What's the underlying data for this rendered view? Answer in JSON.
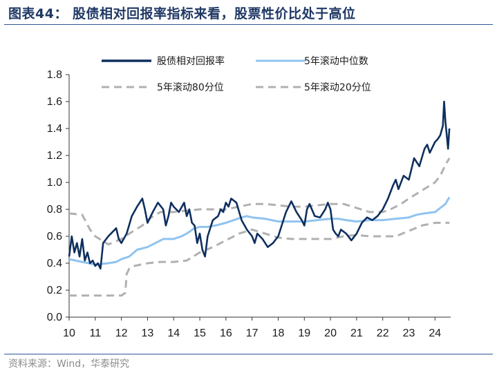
{
  "header": {
    "title": "图表44：  股债相对回报率指标来看，股票性价比处于高位"
  },
  "footer": {
    "source": "资料来源：Wind，华泰研究"
  },
  "colors": {
    "main": "#0e2f5e",
    "median": "#8fc3f0",
    "band": "#b0b0b0",
    "rule": "#2f5597"
  },
  "chart_data": {
    "type": "line",
    "title": "",
    "xlabel": "",
    "ylabel": "",
    "xlim": [
      10,
      24.6
    ],
    "ylim": [
      0,
      1.8
    ],
    "x_ticks": [
      "10",
      "11",
      "12",
      "13",
      "14",
      "15",
      "16",
      "17",
      "18",
      "19",
      "20",
      "21",
      "22",
      "23",
      "24"
    ],
    "y_ticks": [
      "0.0",
      "0.2",
      "0.4",
      "0.6",
      "0.8",
      "1.0",
      "1.2",
      "1.4",
      "1.6",
      "1.8"
    ],
    "legend_position": "top",
    "series": [
      {
        "name": "股债相对回报率",
        "color": "#0e2f5e",
        "style": "solid",
        "x": [
          10.0,
          10.1,
          10.2,
          10.3,
          10.4,
          10.5,
          10.6,
          10.7,
          10.8,
          10.9,
          11.0,
          11.1,
          11.2,
          11.3,
          11.5,
          11.7,
          11.8,
          11.9,
          12.0,
          12.2,
          12.4,
          12.6,
          12.8,
          12.9,
          13.0,
          13.2,
          13.4,
          13.6,
          13.7,
          13.8,
          13.9,
          14.0,
          14.2,
          14.4,
          14.5,
          14.6,
          14.7,
          14.8,
          14.9,
          15.0,
          15.1,
          15.2,
          15.3,
          15.5,
          15.7,
          15.8,
          15.9,
          16.0,
          16.1,
          16.2,
          16.4,
          16.6,
          16.8,
          17.0,
          17.1,
          17.2,
          17.4,
          17.6,
          17.8,
          18.0,
          18.2,
          18.3,
          18.5,
          18.7,
          18.9,
          19.0,
          19.1,
          19.2,
          19.4,
          19.6,
          19.8,
          19.9,
          20.0,
          20.1,
          20.2,
          20.3,
          20.4,
          20.6,
          20.8,
          21.0,
          21.2,
          21.4,
          21.6,
          21.8,
          22.0,
          22.2,
          22.4,
          22.5,
          22.6,
          22.8,
          23.0,
          23.2,
          23.4,
          23.6,
          23.7,
          23.8,
          24.0,
          24.1,
          24.2,
          24.3,
          24.35,
          24.4,
          24.5,
          24.55
        ],
        "y": [
          0.45,
          0.6,
          0.48,
          0.55,
          0.45,
          0.58,
          0.42,
          0.48,
          0.4,
          0.42,
          0.38,
          0.4,
          0.36,
          0.55,
          0.6,
          0.64,
          0.66,
          0.58,
          0.55,
          0.62,
          0.75,
          0.82,
          0.88,
          0.8,
          0.7,
          0.78,
          0.85,
          0.8,
          0.68,
          0.75,
          0.85,
          0.82,
          0.78,
          0.85,
          0.75,
          0.8,
          0.7,
          0.68,
          0.55,
          0.62,
          0.5,
          0.45,
          0.6,
          0.72,
          0.75,
          0.8,
          0.78,
          0.85,
          0.82,
          0.88,
          0.85,
          0.72,
          0.65,
          0.6,
          0.55,
          0.62,
          0.58,
          0.52,
          0.55,
          0.6,
          0.72,
          0.78,
          0.86,
          0.78,
          0.72,
          0.68,
          0.8,
          0.84,
          0.75,
          0.74,
          0.8,
          0.85,
          0.8,
          0.65,
          0.62,
          0.6,
          0.65,
          0.62,
          0.57,
          0.62,
          0.7,
          0.74,
          0.72,
          0.75,
          0.8,
          0.88,
          0.98,
          1.02,
          0.95,
          1.05,
          1.02,
          1.18,
          1.12,
          1.25,
          1.28,
          1.22,
          1.3,
          1.32,
          1.35,
          1.42,
          1.6,
          1.45,
          1.25,
          1.4
        ]
      },
      {
        "name": "5年滚动中位数",
        "color": "#8fc3f0",
        "style": "solid",
        "x": [
          10.0,
          10.5,
          11.0,
          11.5,
          11.8,
          12.0,
          12.3,
          12.6,
          13.0,
          13.3,
          13.6,
          14.0,
          14.3,
          14.5,
          14.8,
          15.0,
          15.3,
          15.6,
          16.0,
          16.3,
          16.6,
          16.8,
          17.0,
          17.5,
          18.0,
          18.5,
          19.0,
          19.5,
          20.0,
          20.3,
          20.6,
          21.0,
          21.5,
          22.0,
          22.5,
          23.0,
          23.3,
          23.6,
          24.0,
          24.2,
          24.4,
          24.55
        ],
        "y": [
          0.43,
          0.41,
          0.39,
          0.4,
          0.41,
          0.43,
          0.45,
          0.5,
          0.52,
          0.55,
          0.58,
          0.58,
          0.6,
          0.62,
          0.66,
          0.67,
          0.67,
          0.68,
          0.7,
          0.72,
          0.74,
          0.75,
          0.74,
          0.73,
          0.71,
          0.71,
          0.71,
          0.72,
          0.73,
          0.73,
          0.72,
          0.71,
          0.72,
          0.72,
          0.73,
          0.74,
          0.76,
          0.77,
          0.78,
          0.81,
          0.84,
          0.89
        ]
      },
      {
        "name": "5年滚动80分位",
        "color": "#b0b0b0",
        "style": "dashed",
        "x": [
          10.0,
          10.5,
          10.8,
          11.0,
          11.5,
          12.0,
          12.3,
          12.8,
          13.0,
          13.3,
          13.5,
          14.0,
          14.5,
          15.0,
          15.5,
          16.0,
          16.5,
          17.0,
          17.5,
          18.0,
          18.5,
          19.0,
          19.5,
          20.0,
          20.5,
          21.0,
          21.5,
          22.0,
          22.3,
          22.7,
          23.0,
          23.5,
          24.0,
          24.2,
          24.4,
          24.55
        ],
        "y": [
          0.77,
          0.76,
          0.65,
          0.6,
          0.54,
          0.58,
          0.62,
          0.68,
          0.72,
          0.76,
          0.78,
          0.78,
          0.79,
          0.8,
          0.8,
          0.8,
          0.82,
          0.84,
          0.84,
          0.83,
          0.82,
          0.82,
          0.83,
          0.84,
          0.84,
          0.81,
          0.78,
          0.78,
          0.8,
          0.84,
          0.88,
          0.94,
          1.0,
          1.05,
          1.13,
          1.18
        ]
      },
      {
        "name": "5年滚动20分位",
        "color": "#b0b0b0",
        "style": "dashed",
        "x": [
          10.0,
          10.5,
          11.0,
          11.5,
          12.0,
          12.15,
          12.2,
          12.3,
          12.5,
          13.0,
          13.5,
          14.0,
          14.5,
          15.0,
          15.5,
          16.0,
          16.5,
          17.0,
          17.5,
          18.0,
          18.5,
          19.0,
          19.5,
          20.0,
          20.5,
          21.0,
          21.5,
          22.0,
          22.5,
          23.0,
          23.5,
          24.0,
          24.55
        ],
        "y": [
          0.16,
          0.16,
          0.16,
          0.16,
          0.16,
          0.18,
          0.32,
          0.36,
          0.38,
          0.4,
          0.41,
          0.41,
          0.42,
          0.48,
          0.52,
          0.57,
          0.62,
          0.65,
          0.62,
          0.59,
          0.58,
          0.58,
          0.58,
          0.58,
          0.6,
          0.61,
          0.6,
          0.6,
          0.6,
          0.64,
          0.68,
          0.7,
          0.7
        ]
      }
    ]
  }
}
